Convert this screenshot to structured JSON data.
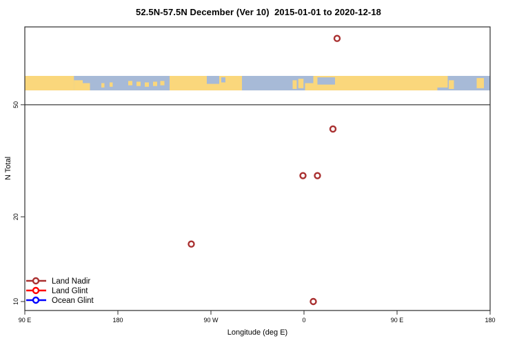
{
  "title": "52.5N-57.5N December (Ver 10)  2015-01-01 to 2020-12-18",
  "chart_data": {
    "type": "scatter",
    "title": "52.5N-57.5N December (Ver 10)  2015-01-01 to 2020-12-18",
    "xlabel": "Longitude (deg E)",
    "ylabel": "N Total",
    "x_axis": {
      "description": "longitude wrapping eastward from 90E",
      "ticks": [
        {
          "label": "90 E",
          "t": 0
        },
        {
          "label": "180",
          "t": 90
        },
        {
          "label": "90 W",
          "t": 180
        },
        {
          "label": "0",
          "t": 270
        },
        {
          "label": "90 E",
          "t": 360
        },
        {
          "label": "180",
          "t": 450
        }
      ]
    },
    "y_axis": {
      "scale": "log",
      "ticks": [
        10,
        20,
        50
      ],
      "range_approx": [
        9.3,
        94.5
      ]
    },
    "reference_line_y": 50,
    "grid": "off",
    "legend_position": "bottom-left",
    "series": [
      {
        "name": "Land Nadir",
        "color": "#A93030",
        "points": [
          {
            "lon_deg_e": 32,
            "n": 86
          },
          {
            "lon_deg_e": 28,
            "n": 41
          },
          {
            "lon_deg_e": -1,
            "n": 28
          },
          {
            "lon_deg_e": 13,
            "n": 28
          },
          {
            "lon_deg_e": -109,
            "n": 16
          },
          {
            "lon_deg_e": 9,
            "n": 10
          }
        ]
      },
      {
        "name": "Land Glint",
        "color": "#FF0000",
        "points": []
      },
      {
        "name": "Ocean Glint",
        "color": "#0000FF",
        "points": []
      }
    ],
    "map_band": {
      "note": "world land/ocean strip at 52.5N-57.5N drawn near y=60",
      "land_color": "#FAD77C",
      "ocean_color": "#A7BAD7",
      "segments": [
        {
          "from": 0,
          "to": 450,
          "type": "ocean"
        },
        {
          "from": 0,
          "to": 47.5,
          "type": "land"
        },
        {
          "from": 47.5,
          "to": 56,
          "top": 0.3,
          "bot": 1,
          "type": "land"
        },
        {
          "from": 56,
          "to": 63,
          "top": 0.5,
          "bot": 1,
          "type": "land"
        },
        {
          "from": 74,
          "to": 77,
          "top": 0.5,
          "bot": 0.8,
          "type": "land"
        },
        {
          "from": 82,
          "to": 85,
          "top": 0.45,
          "bot": 0.75,
          "type": "land"
        },
        {
          "from": 100,
          "to": 104,
          "top": 0.35,
          "bot": 0.65,
          "type": "land"
        },
        {
          "from": 108,
          "to": 112,
          "top": 0.4,
          "bot": 0.7,
          "type": "land"
        },
        {
          "from": 116,
          "to": 120,
          "top": 0.45,
          "bot": 0.75,
          "type": "land"
        },
        {
          "from": 124,
          "to": 128,
          "top": 0.4,
          "bot": 0.7,
          "type": "land"
        },
        {
          "from": 131,
          "to": 135,
          "top": 0.35,
          "bot": 0.65,
          "type": "land"
        },
        {
          "from": 140,
          "to": 210,
          "type": "land"
        },
        {
          "from": 176,
          "to": 188,
          "top": 0,
          "bot": 0.55,
          "type": "ocean"
        },
        {
          "from": 190,
          "to": 194,
          "top": 0.1,
          "bot": 0.45,
          "type": "ocean"
        },
        {
          "from": 259,
          "to": 263,
          "top": 0.3,
          "bot": 0.9,
          "type": "land"
        },
        {
          "from": 264.5,
          "to": 269.5,
          "top": 0.2,
          "bot": 0.85,
          "type": "land"
        },
        {
          "from": 271,
          "to": 399,
          "type": "land"
        },
        {
          "from": 271,
          "to": 279,
          "top": 0,
          "bot": 0.5,
          "type": "ocean"
        },
        {
          "from": 283,
          "to": 300,
          "top": 0.1,
          "bot": 0.6,
          "type": "ocean"
        },
        {
          "from": 399,
          "to": 409,
          "top": 0,
          "bot": 0.8,
          "type": "land"
        },
        {
          "from": 410,
          "to": 415,
          "top": 0.3,
          "bot": 0.9,
          "type": "land"
        },
        {
          "from": 437,
          "to": 444,
          "top": 0.15,
          "bot": 0.85,
          "type": "land"
        }
      ]
    }
  }
}
